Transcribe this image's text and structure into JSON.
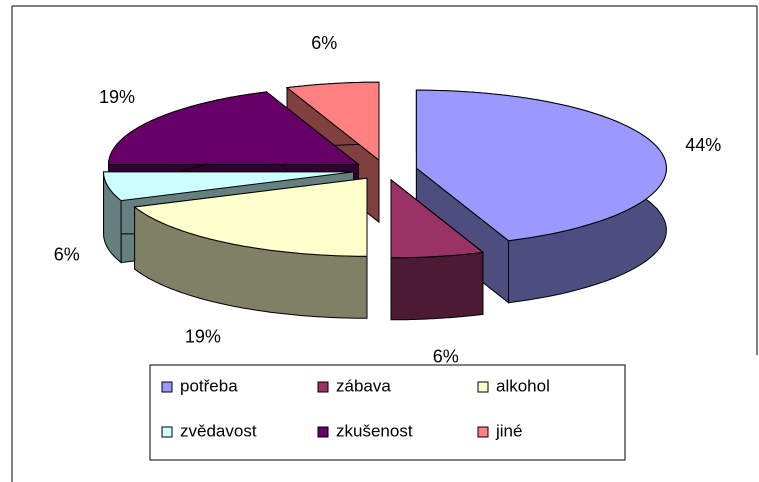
{
  "chart_data": {
    "type": "pie3d",
    "categories": [
      "potřeba",
      "zábava",
      "alkohol",
      "zvědavost",
      "zkušenost",
      "jiné"
    ],
    "values": [
      44,
      6,
      19,
      6,
      19,
      6
    ],
    "value_labels": [
      "44%",
      "6%",
      "19%",
      "6%",
      "19%",
      "6%"
    ],
    "colors": [
      "#9999ff",
      "#993366",
      "#ffffcc",
      "#ccffff",
      "#660066",
      "#ff8080"
    ],
    "legend": "bottom"
  }
}
